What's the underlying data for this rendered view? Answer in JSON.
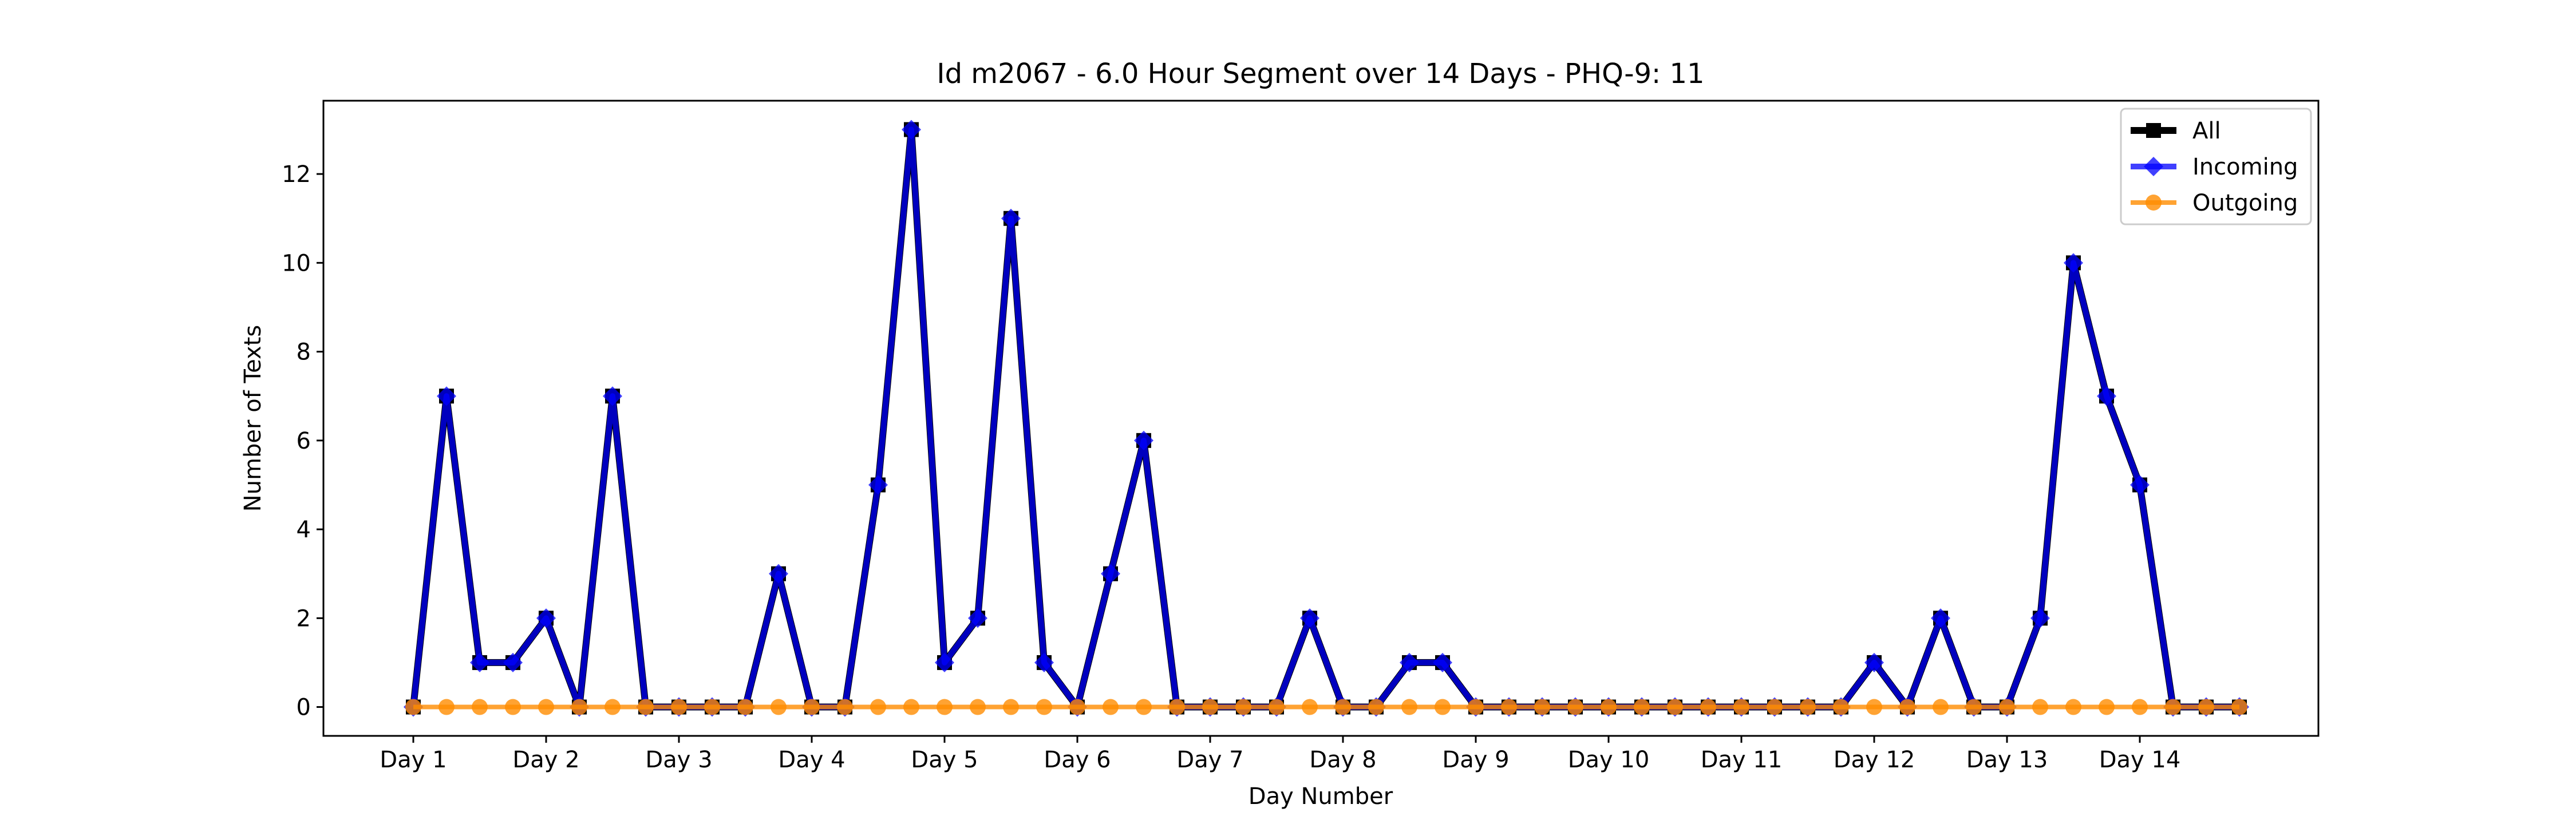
{
  "chart_data": {
    "type": "line",
    "title": "Id m2067 - 6.0 Hour Segment over 14 Days - PHQ-9: 11",
    "xlabel": "Day Number",
    "ylabel": "Number of Texts",
    "xticks": [
      "Day 1",
      "Day 2",
      "Day 3",
      "Day 4",
      "Day 5",
      "Day 6",
      "Day 7",
      "Day 8",
      "Day 9",
      "Day 10",
      "Day 11",
      "Day 12",
      "Day 13",
      "Day 14"
    ],
    "yticks": [
      0,
      2,
      4,
      6,
      8,
      10,
      12
    ],
    "ylim": [
      -0.65,
      13.65
    ],
    "grid": false,
    "legend_position": "top-right",
    "series": [
      {
        "name": "All",
        "color": "#000000",
        "marker": "square",
        "values": [
          0,
          7,
          1,
          1,
          2,
          0,
          7,
          0,
          0,
          0,
          0,
          3,
          0,
          0,
          5,
          13,
          1,
          2,
          11,
          1,
          0,
          3,
          6,
          0,
          0,
          0,
          0,
          2,
          0,
          0,
          1,
          1,
          0,
          0,
          0,
          0,
          0,
          0,
          0,
          0,
          0,
          0,
          0,
          0,
          1,
          0,
          2,
          0,
          0,
          2,
          10,
          7,
          5,
          0,
          0,
          0
        ]
      },
      {
        "name": "Incoming",
        "color": "#0000ff",
        "marker": "diamond",
        "values": [
          0,
          7,
          1,
          1,
          2,
          0,
          7,
          0,
          0,
          0,
          0,
          3,
          0,
          0,
          5,
          13,
          1,
          2,
          11,
          1,
          0,
          3,
          6,
          0,
          0,
          0,
          0,
          2,
          0,
          0,
          1,
          1,
          0,
          0,
          0,
          0,
          0,
          0,
          0,
          0,
          0,
          0,
          0,
          0,
          1,
          0,
          2,
          0,
          0,
          2,
          10,
          7,
          5,
          0,
          0,
          0
        ]
      },
      {
        "name": "Outgoing",
        "color": "#ff8c00",
        "marker": "circle",
        "values": [
          0,
          0,
          0,
          0,
          0,
          0,
          0,
          0,
          0,
          0,
          0,
          0,
          0,
          0,
          0,
          0,
          0,
          0,
          0,
          0,
          0,
          0,
          0,
          0,
          0,
          0,
          0,
          0,
          0,
          0,
          0,
          0,
          0,
          0,
          0,
          0,
          0,
          0,
          0,
          0,
          0,
          0,
          0,
          0,
          0,
          0,
          0,
          0,
          0,
          0,
          0,
          0,
          0,
          0,
          0,
          0
        ]
      }
    ]
  }
}
